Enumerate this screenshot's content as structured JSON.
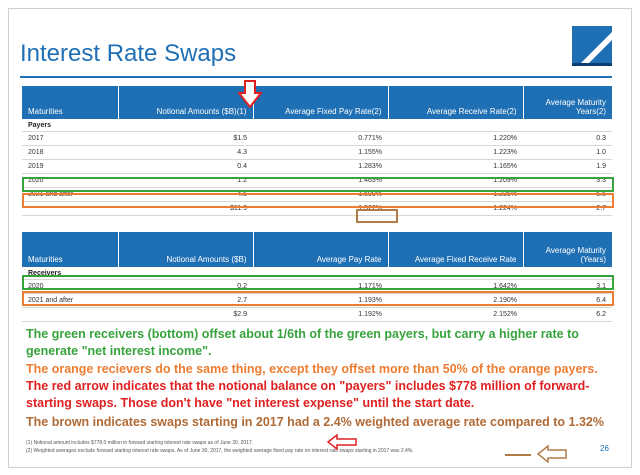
{
  "title": "Interest Rate Swaps",
  "page_number": "26",
  "payers_table": {
    "headers": [
      "Maturities",
      "Notional Amounts ($B)(1)",
      "Average Fixed Pay Rate(2)",
      "Average Receive Rate(2)",
      "Average Maturity Years(2)"
    ],
    "section_label": "Payers",
    "rows": [
      [
        "2017",
        "$1.5",
        "0.771%",
        "1.220%",
        "0.3"
      ],
      [
        "2018",
        "4.3",
        "1.155%",
        "1.223%",
        "1.0"
      ],
      [
        "2019",
        "0.4",
        "1.283%",
        "1.165%",
        "1.9"
      ],
      [
        "2020",
        "1.2",
        "1.463%",
        "1.209%",
        "3.3"
      ],
      [
        "2021 and after",
        "4.5",
        "1.699%",
        "1.235%",
        "5.6"
      ]
    ],
    "total": [
      "",
      "$11.9",
      "1.322%",
      "1.224%",
      "2.7"
    ]
  },
  "receivers_table": {
    "headers": [
      "Maturities",
      "Notional Amounts ($B)",
      "Average Pay Rate",
      "Average Fixed Receive Rate",
      "Average Maturity (Years)"
    ],
    "section_label": "Receivers",
    "rows": [
      [
        "2020",
        "0.2",
        "1.171%",
        "1.642%",
        "3.1"
      ],
      [
        "2021 and after",
        "2.7",
        "1.193%",
        "2.190%",
        "6.4"
      ]
    ],
    "total": [
      "",
      "$2.9",
      "1.192%",
      "2.152%",
      "6.2"
    ]
  },
  "annotations": {
    "green": "The green receivers (bottom) offset about 1/6th of the green payers, but carry a higher rate to generate \"net interest income\".",
    "orange": "The orange recievers do the same thing, except they offset more than 50% of the orange payers.",
    "red": "The red arrow indicates that the notional balance on \"payers\" includes $778 million of forward-starting swaps. Those don't have \"net interest expense\" until the start date.",
    "brown": "The brown indicates swaps starting in 2017 had a 2.4% weighted average rate compared to 1.32%"
  },
  "footnotes": [
    "(1)   Notional amount includes $778.0 million in forward starting interest rate swaps as of June 30, 2017.",
    "(2)   Weighted averages exclude forward starting interest rate swaps. As of June 30, 2017, the weighted average fixed pay rate on interest rate swaps starting in 2017 was 2.4%."
  ],
  "colors": {
    "brand_blue": "#1f6fb5",
    "green": "#37a33c",
    "orange": "#ed7d31",
    "red": "#e02020",
    "brown": "#b06a35"
  }
}
